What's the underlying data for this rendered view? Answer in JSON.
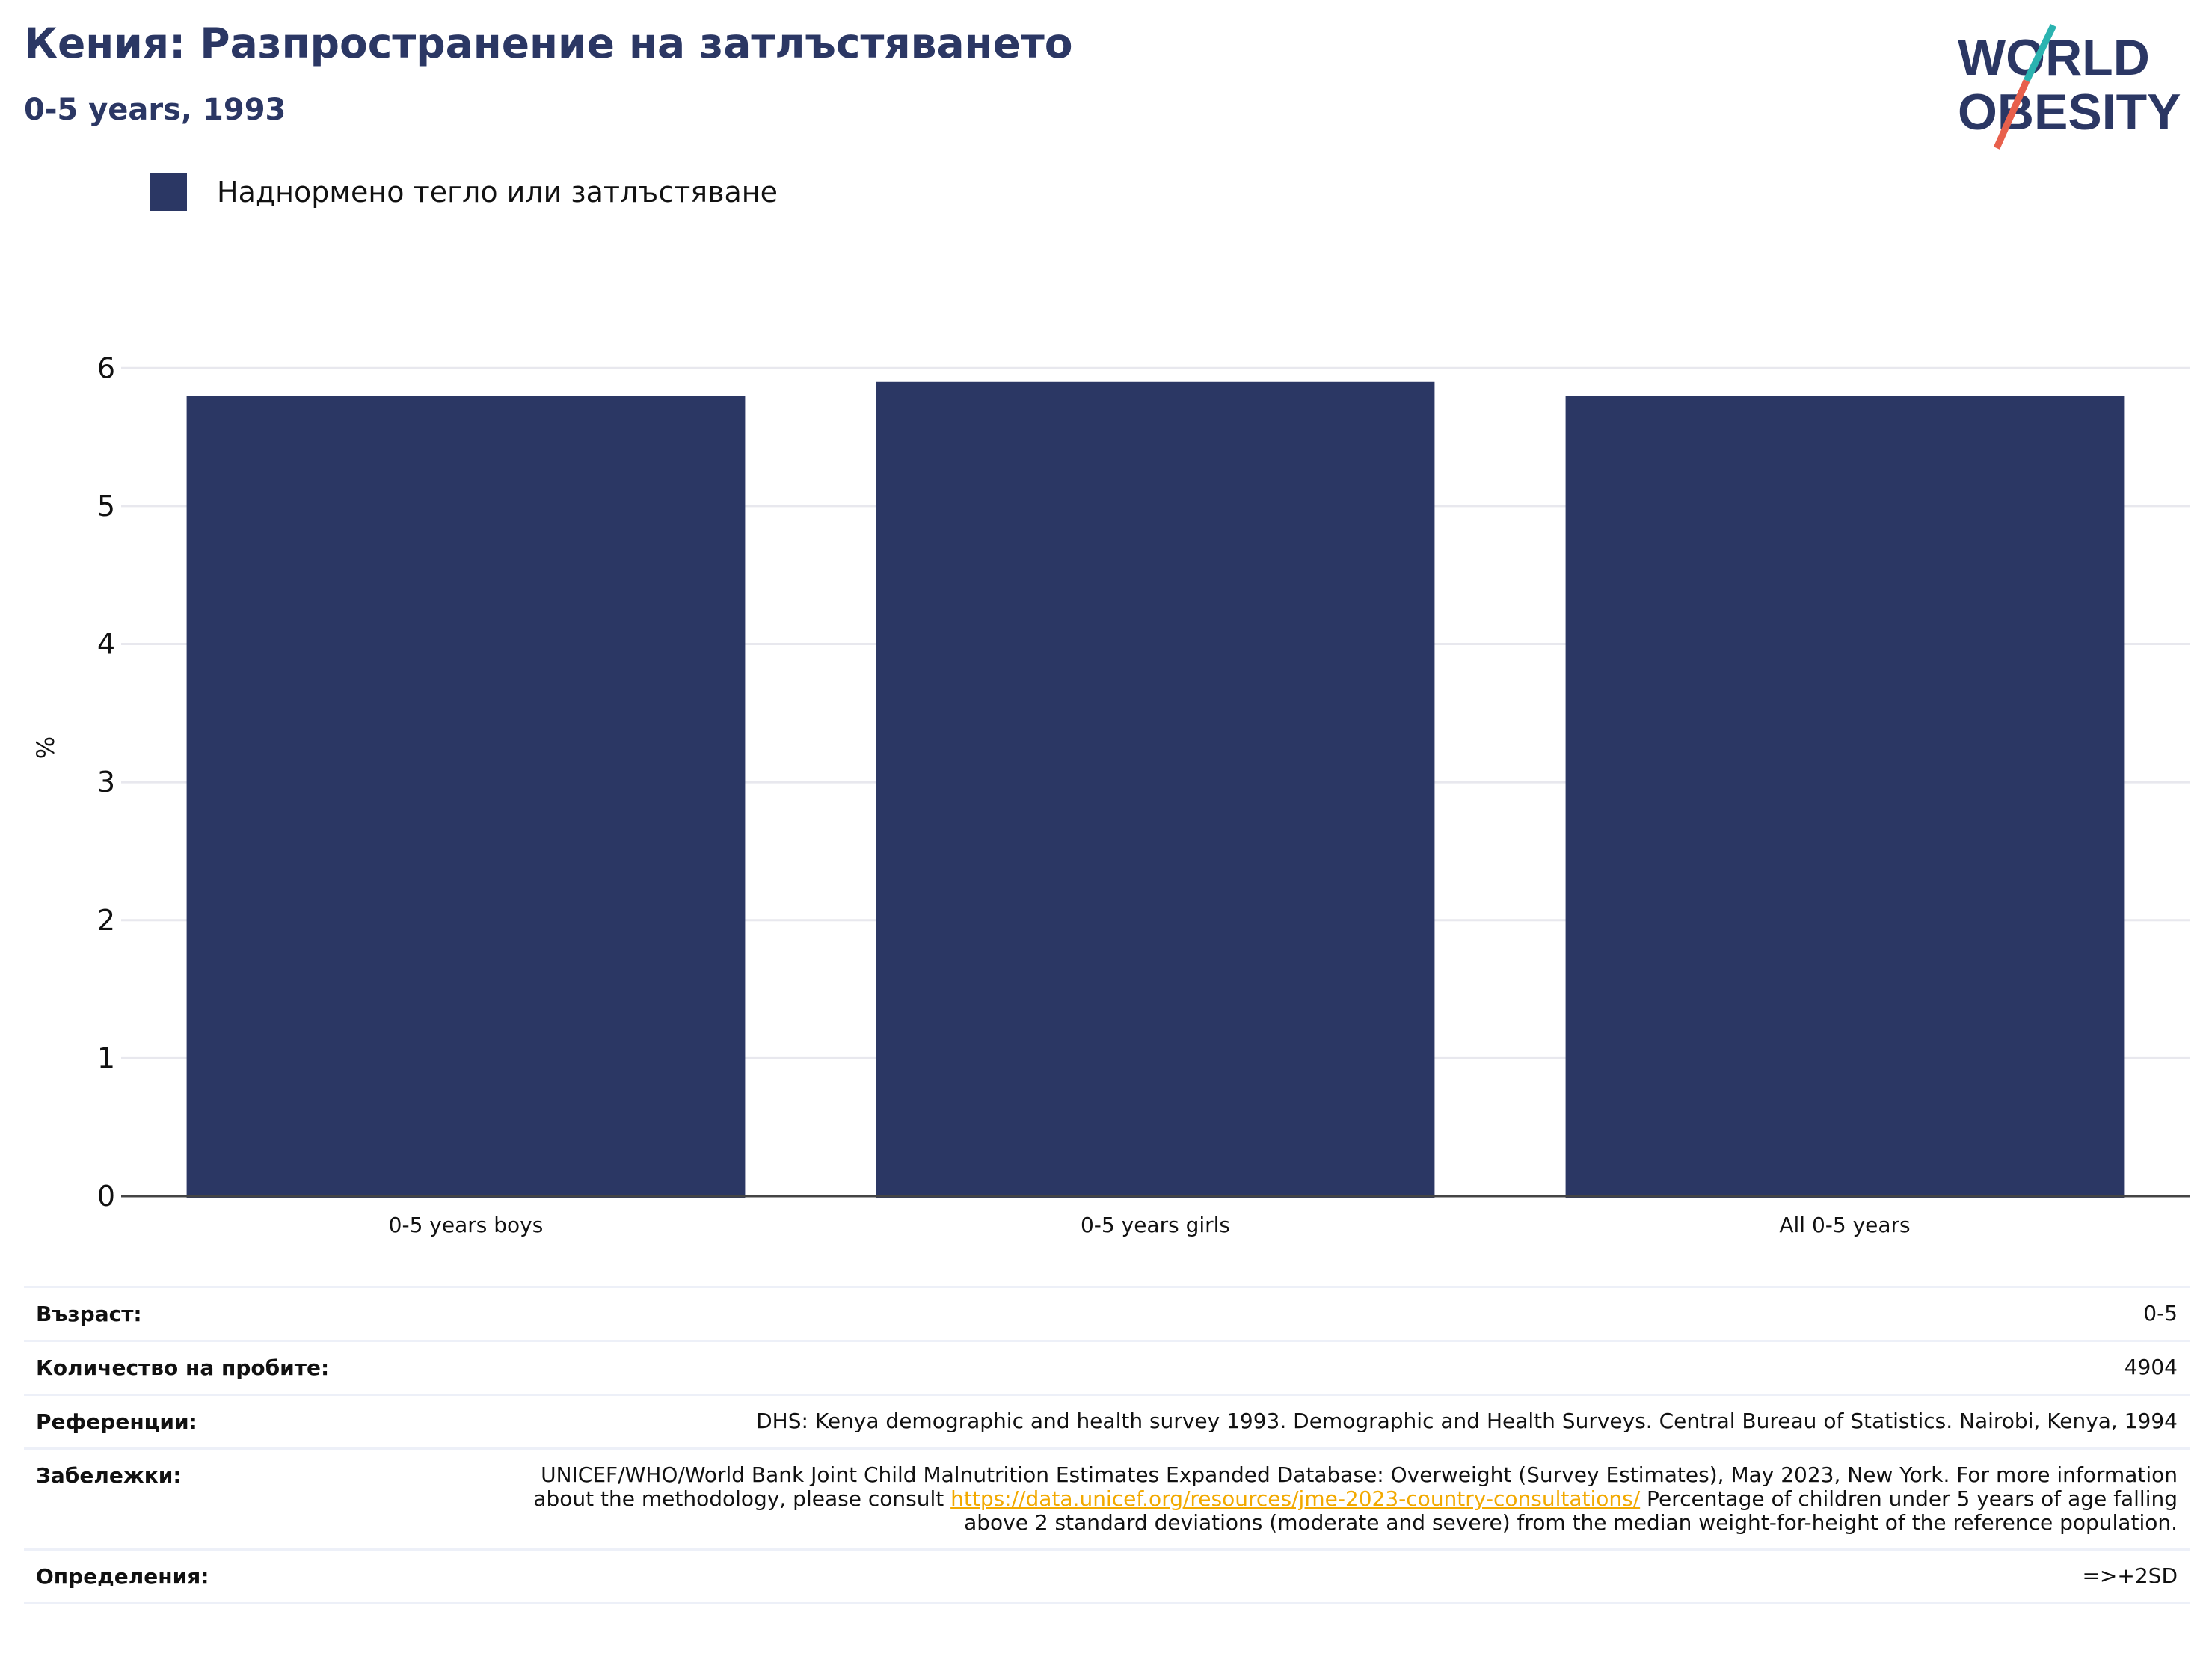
{
  "header": {
    "title": "Кения: Разпространение на затлъстяването",
    "subtitle": "0-5 years, 1993"
  },
  "logo": {
    "line1": "WORLD",
    "line2": "OBESITY"
  },
  "legend": {
    "label": "Наднормено тегло или затлъстяване"
  },
  "colors": {
    "bar": "#2b3764",
    "title": "#2b3764",
    "link": "#f2a900"
  },
  "chart_data": {
    "type": "bar",
    "categories": [
      "0-5 years boys",
      "0-5 years girls",
      "All 0-5 years"
    ],
    "series": [
      {
        "name": "Наднормено тегло или затлъстяване",
        "values": [
          5.8,
          5.9,
          5.8
        ]
      }
    ],
    "ylabel": "%",
    "ylim": [
      0,
      6.5
    ],
    "yticks": [
      0,
      1,
      2,
      3,
      4,
      5,
      6
    ],
    "grid": true,
    "legend_position": "top-left"
  },
  "info": {
    "age_label": "Възраст:",
    "age_value": "0-5",
    "sample_label": "Количество на пробите:",
    "sample_value": "4904",
    "refs_label": "Референции:",
    "refs_value": "DHS: Kenya demographic and health survey 1993. Demographic and Health Surveys. Central Bureau of Statistics. Nairobi, Kenya, 1994",
    "notes_label": "Забележки:",
    "notes_before": "UNICEF/WHO/World Bank Joint Child Malnutrition Estimates Expanded Database: Overweight (Survey Estimates), May 2023, New York. For more information about the methodology, please consult ",
    "notes_link": "https://data.unicef.org/resources/jme-2023-country-consultations/",
    "notes_after": " Percentage of children under 5 years of age falling above 2 standard deviations (moderate and severe) from the median weight-for-height of the reference population.",
    "defs_label": "Определения:",
    "defs_value": "=>+2SD"
  }
}
